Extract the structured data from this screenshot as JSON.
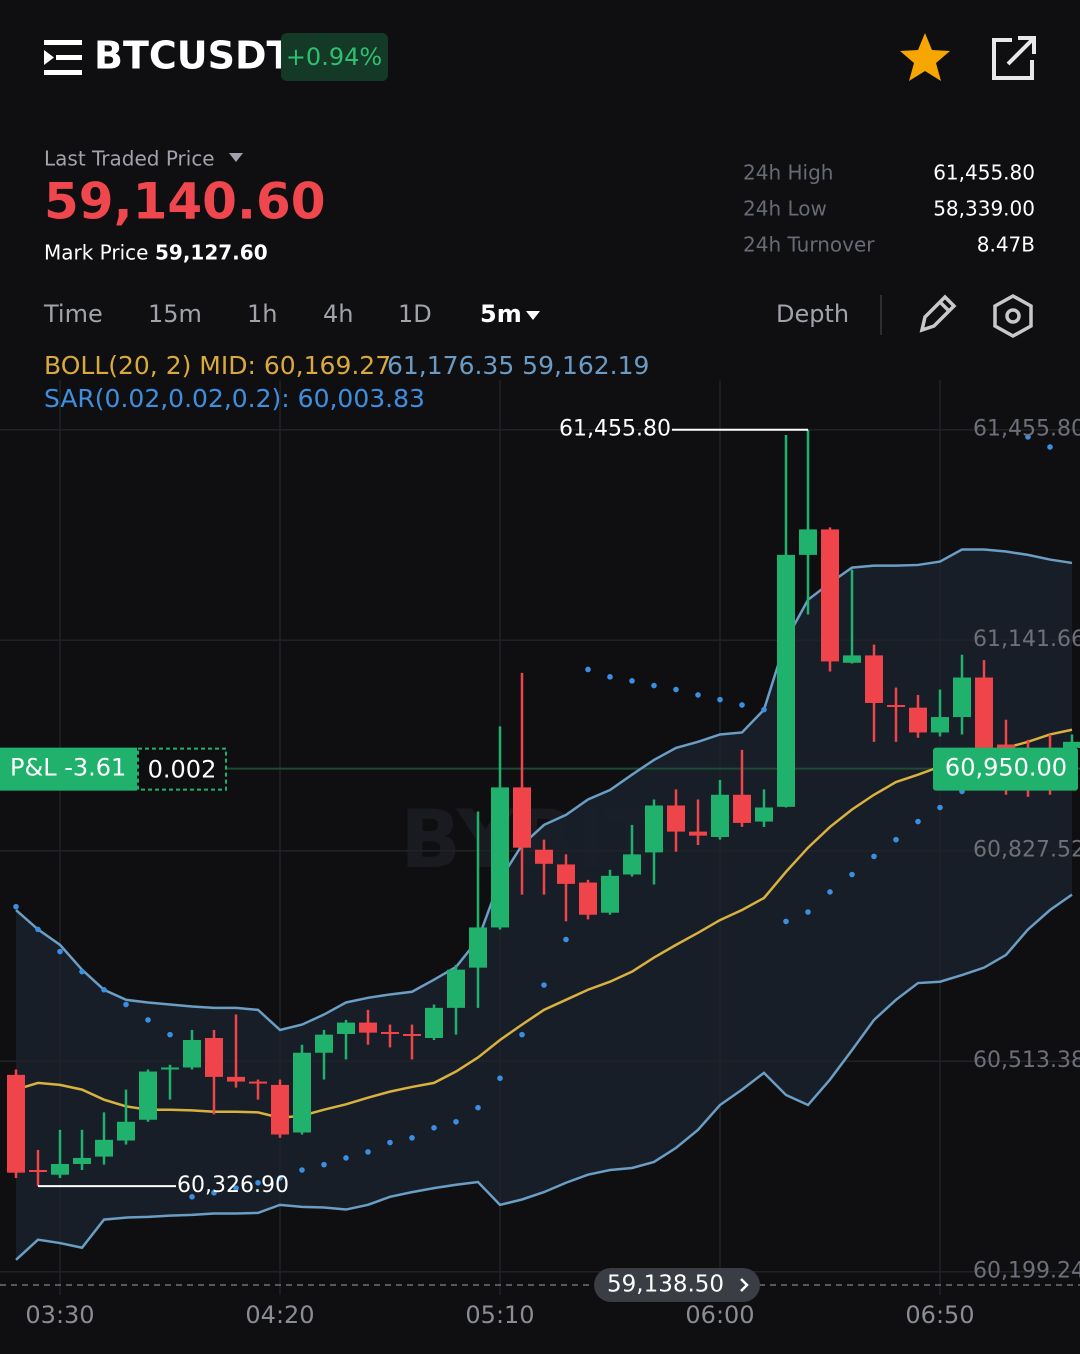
{
  "header": {
    "symbol": "BTCUSDT",
    "change": "+0.94%"
  },
  "price": {
    "label": "Last Traded Price",
    "last": "59,140.60",
    "mark_label": "Mark Price",
    "mark": "59,127.60"
  },
  "stats": [
    {
      "label": "24h High",
      "value": "61,455.80"
    },
    {
      "label": "24h Low",
      "value": "58,339.00"
    },
    {
      "label": "24h Turnover",
      "value": "8.47B"
    }
  ],
  "tabs": [
    "Time",
    "15m",
    "1h",
    "4h",
    "1D",
    "5m"
  ],
  "depth": "Depth",
  "indicators": {
    "boll": "BOLL(20, 2) MID: 60,169.27",
    "boll_bands": "61,176.35 59,162.19",
    "sar": "SAR(0.02,0.02,0.2): 60,003.83"
  },
  "chart_data": {
    "type": "candlestick",
    "watermark": "BYBIT",
    "categories": [
      null,
      null,
      "03:30",
      null,
      null,
      null,
      null,
      null,
      null,
      null,
      null,
      null,
      "04:20",
      null,
      null,
      null,
      null,
      null,
      null,
      null,
      null,
      null,
      "05:10",
      null,
      null,
      null,
      null,
      null,
      null,
      null,
      null,
      null,
      "06:00",
      null,
      null,
      null,
      null,
      null,
      null,
      null,
      null,
      null,
      "06:50",
      null,
      null,
      null,
      null,
      null,
      null
    ],
    "open": [
      60493,
      60351,
      60344,
      60360,
      60371,
      60395,
      60426,
      60501,
      60504,
      60548,
      60490,
      60483,
      60478,
      60407,
      60526,
      60554,
      60571,
      60557,
      60554,
      60548,
      60593,
      60653,
      60713,
      60922,
      60829,
      60807,
      60780,
      60735,
      60792,
      60825,
      60895,
      60856,
      60848,
      60911,
      60871,
      60893,
      61269,
      61307,
      61108,
      61119,
      61045,
      61041,
      61004,
      61027,
      61086,
      60986,
      60951,
      60956,
      60981
    ],
    "high": [
      60501,
      60381,
      60411,
      60411,
      60437,
      60471,
      60501,
      60508,
      60560,
      60560,
      60583,
      60486,
      60486,
      60538,
      60560,
      60575,
      60590,
      60568,
      60568,
      60598,
      60657,
      60886,
      61013,
      61093,
      60844,
      60822,
      60784,
      60799,
      60866,
      60904,
      60919,
      60904,
      60933,
      60978,
      60919,
      61448,
      61455.8,
      61310,
      61247,
      61135,
      61071,
      61060,
      61068,
      61120,
      61112,
      61023,
      60993,
      61001,
      61001
    ],
    "low": [
      60339,
      60326.9,
      60339,
      60351,
      60359,
      60389,
      60423,
      60456,
      60501,
      60434,
      60474,
      60456,
      60399,
      60404,
      60486,
      60516,
      60538,
      60534,
      60516,
      60545,
      60553,
      60593,
      60710,
      60762,
      60762,
      60722,
      60725,
      60732,
      60789,
      60777,
      60826,
      60836,
      60844,
      60863,
      60863,
      60892,
      61180,
      61095,
      61107,
      60990,
      60990,
      60996,
      60998,
      61001,
      60919,
      60911,
      60908,
      60911,
      60978
    ],
    "close": [
      60347,
      60348,
      60360,
      60369,
      60396,
      60423,
      60498,
      60504,
      60545,
      60490,
      60483,
      60480,
      60404,
      60526,
      60553,
      60571,
      60556,
      60554,
      60551,
      60593,
      60650,
      60713,
      60922,
      60832,
      60808,
      60778,
      60732,
      60790,
      60822,
      60895,
      60856,
      60850,
      60911,
      60869,
      60892,
      61269,
      61307,
      61110,
      61119,
      61048,
      61042,
      61004,
      61027,
      61086,
      60981,
      60948,
      60948,
      60948,
      60990
    ],
    "boll_upper": [
      60739,
      60710,
      60687,
      60650,
      60620,
      60605,
      60601,
      60598,
      60595,
      60593,
      60593,
      60590,
      60560,
      60568,
      60583,
      60601,
      60608,
      60613,
      60617,
      60635,
      60654,
      60695,
      60784,
      60836,
      60866,
      60881,
      60904,
      60918,
      60941,
      60963,
      60981,
      60990,
      61001,
      61004,
      61038,
      61142,
      61202,
      61227,
      61250,
      61253,
      61253,
      61254,
      61259,
      61277,
      61277,
      61274,
      61269,
      61262,
      61257
    ],
    "boll_mid": [
      60471,
      60481,
      60478,
      60471,
      60456,
      60446,
      60441,
      60441,
      60440,
      60438,
      60438,
      60437,
      60429,
      60432,
      60441,
      60449,
      60459,
      60468,
      60475,
      60481,
      60498,
      60519,
      60545,
      60568,
      60590,
      60605,
      60620,
      60632,
      60647,
      60668,
      60687,
      60705,
      60724,
      60739,
      60757,
      60796,
      60832,
      60863,
      60889,
      60911,
      60930,
      60941,
      60953,
      60963,
      60971,
      60981,
      60990,
      61001,
      61008
    ],
    "boll_lower": [
      60217,
      60247,
      60242,
      60235,
      60277,
      60280,
      60281,
      60283,
      60284,
      60286,
      60286,
      60287,
      60299,
      60296,
      60295,
      60292,
      60299,
      60311,
      60318,
      60324,
      60329,
      60333,
      60299,
      60307,
      60318,
      60332,
      60344,
      60351,
      60354,
      60363,
      60384,
      60411,
      60448,
      60471,
      60496,
      60463,
      60448,
      60486,
      60530,
      60575,
      60605,
      60630,
      60632,
      60642,
      60653,
      60672,
      60710,
      60739,
      60762
    ],
    "sar": [
      60744,
      60710,
      60677,
      60647,
      60620,
      60598,
      60575,
      60553,
      60311,
      60317,
      60324,
      60332,
      60339,
      60351,
      60359,
      60369,
      60378,
      60392,
      60399,
      60414,
      60423,
      60444,
      60488,
      60553,
      60627,
      60695,
      61098,
      61087,
      61081,
      61074,
      61068,
      61060,
      61053,
      61045,
      61038,
      60722,
      60736,
      60766,
      60792,
      60819,
      60844,
      60871,
      60892,
      60916,
      null,
      null,
      61445,
      61430,
      null
    ],
    "colors": {
      "up": "#20b26c",
      "down": "#ef454a",
      "band": "#6a9ec4",
      "mid": "#d9b13f",
      "sar": "#3b8fe0",
      "band_fill": "#18202a"
    },
    "ylim": [
      60157,
      61530
    ],
    "yticks": [
      {
        "value": 61455.8,
        "label": "61,455.80"
      },
      {
        "value": 61141.66,
        "label": "61,141.66"
      },
      {
        "value": 60827.52,
        "label": "60,827.52"
      },
      {
        "value": 60513.38,
        "label": "60,513.38"
      },
      {
        "value": 60199.24,
        "label": "60,199.24"
      }
    ],
    "grid": true,
    "high_label": "61,455.80",
    "low_label": "60,326.90",
    "position": {
      "value": 60950,
      "label": "60,950.00"
    },
    "pnl": "P&L -3.61",
    "qty": "0.002",
    "current_price": "59,138.50"
  }
}
